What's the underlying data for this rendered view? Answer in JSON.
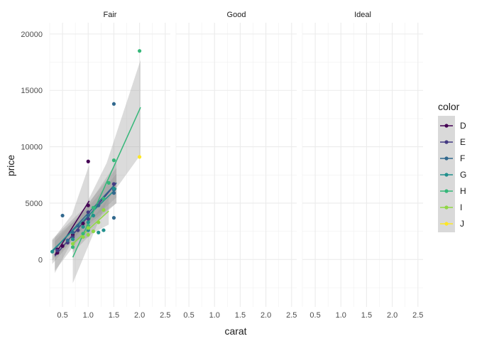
{
  "chart_data": {
    "type": "scatter",
    "title": "",
    "xlabel": "carat",
    "ylabel": "price",
    "xlim": [
      0.25,
      2.6
    ],
    "ylim": [
      -4200,
      21000
    ],
    "x_ticks": [
      0.5,
      1.0,
      1.5,
      2.0,
      2.5
    ],
    "x_tick_labels": [
      "0.5",
      "1.0",
      "1.5",
      "2.0",
      "2.5"
    ],
    "y_ticks": [
      0,
      5000,
      10000,
      15000,
      20000
    ],
    "y_tick_labels": [
      "0",
      "5000",
      "10000",
      "15000",
      "20000"
    ],
    "grid": true,
    "facets": [
      "Fair",
      "Good",
      "Ideal"
    ],
    "legend": {
      "title": "color",
      "position": "right"
    },
    "series": [
      {
        "name": "D",
        "color": "#440154",
        "facet": "Fair",
        "points": [
          [
            0.4,
            600
          ],
          [
            0.4,
            900
          ],
          [
            0.5,
            1200
          ],
          [
            0.7,
            2200
          ],
          [
            0.9,
            3200
          ],
          [
            1.0,
            8700
          ],
          [
            1.0,
            4800
          ]
        ],
        "fit": {
          "x0": 0.35,
          "x1": 1.02,
          "y0": 400,
          "y1": 5200,
          "se0": 1600,
          "se1": 3200
        }
      },
      {
        "name": "E",
        "color": "#443a83",
        "facet": "Fair",
        "points": [
          [
            0.4,
            800
          ],
          [
            0.6,
            1500
          ],
          [
            0.7,
            2000
          ],
          [
            0.8,
            2600
          ],
          [
            1.0,
            3600
          ],
          [
            1.0,
            4200
          ],
          [
            1.5,
            6700
          ]
        ],
        "fit": {
          "x0": 0.35,
          "x1": 1.55,
          "y0": 300,
          "y1": 6800,
          "se0": 1300,
          "se1": 1800
        }
      },
      {
        "name": "F",
        "color": "#31688e",
        "facet": "Fair",
        "points": [
          [
            0.5,
            3900
          ],
          [
            0.6,
            1700
          ],
          [
            0.7,
            2400
          ],
          [
            0.8,
            3000
          ],
          [
            1.0,
            3900
          ],
          [
            1.2,
            4800
          ],
          [
            1.5,
            13800
          ],
          [
            1.5,
            3700
          ],
          [
            1.5,
            6200
          ],
          [
            1.5,
            5900
          ]
        ],
        "fit": {
          "x0": 0.3,
          "x1": 1.55,
          "y0": 700,
          "y1": 6800,
          "se0": 1100,
          "se1": 1300
        }
      },
      {
        "name": "G",
        "color": "#21908d",
        "facet": "Fair",
        "points": [
          [
            0.3,
            700
          ],
          [
            0.7,
            1800
          ],
          [
            0.9,
            2900
          ],
          [
            1.0,
            3300
          ],
          [
            1.0,
            2600
          ],
          [
            1.1,
            3900
          ],
          [
            1.2,
            2400
          ],
          [
            1.3,
            2600
          ],
          [
            1.5,
            6300
          ]
        ],
        "fit": {
          "x0": 0.3,
          "x1": 1.55,
          "y0": 800,
          "y1": 6300,
          "se0": 900,
          "se1": 1300
        }
      },
      {
        "name": "H",
        "color": "#35b779",
        "facet": "Fair",
        "points": [
          [
            0.7,
            1100
          ],
          [
            0.9,
            2300
          ],
          [
            1.0,
            3000
          ],
          [
            1.1,
            4600
          ],
          [
            1.3,
            5400
          ],
          [
            1.4,
            6800
          ],
          [
            1.5,
            8800
          ],
          [
            2.0,
            18500
          ]
        ],
        "fit": {
          "x0": 0.7,
          "x1": 2.02,
          "y0": 200,
          "y1": 13500,
          "se0": 2300,
          "se1": 4200
        }
      },
      {
        "name": "I",
        "color": "#8fd744",
        "facet": "Fair",
        "points": [
          [
            0.7,
            1400
          ],
          [
            0.9,
            2000
          ],
          [
            1.0,
            2200
          ],
          [
            1.0,
            2800
          ],
          [
            1.1,
            2500
          ],
          [
            1.2,
            3300
          ],
          [
            1.3,
            4400
          ]
        ],
        "fit": {
          "x0": 0.7,
          "x1": 1.4,
          "y0": 1400,
          "y1": 4300,
          "se0": 800,
          "se1": 1200
        }
      },
      {
        "name": "J",
        "color": "#fde725",
        "facet": "Fair",
        "points": [
          [
            2.0,
            9100
          ]
        ],
        "fit": null
      }
    ]
  }
}
